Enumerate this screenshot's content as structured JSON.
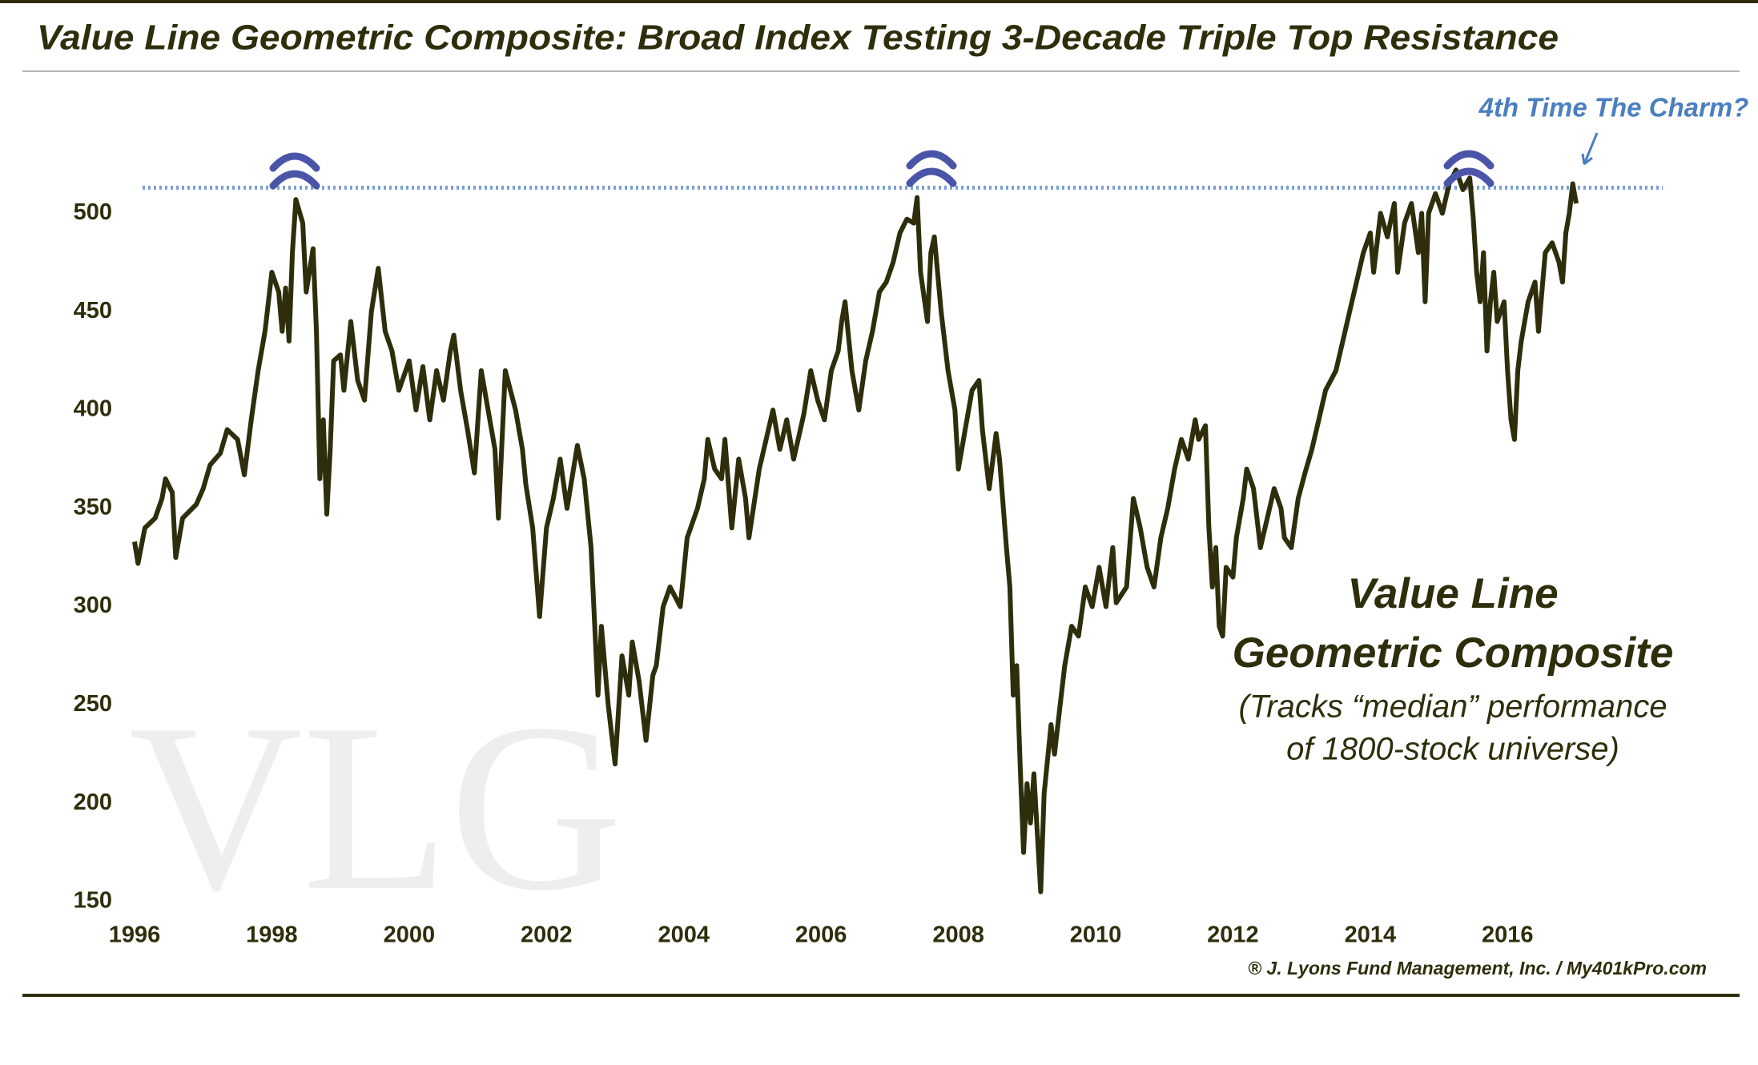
{
  "chart_data": {
    "type": "line",
    "title": "Value Line Geometric Composite: Broad Index Testing 3-Decade Triple Top Resistance",
    "annotation": "4th Time The Charm?",
    "watermark": "VLG",
    "label_lines": [
      "Value Line",
      "Geometric Composite",
      "(Tracks “median” performance",
      "of 1800-stock universe)"
    ],
    "credit": "® J. Lyons Fund Management, Inc. / My401kPro.com",
    "color": "#2e2e0c",
    "resistance_level": 513,
    "resistance_color": "#7a9fd6",
    "xlim": [
      1996,
      2018.4
    ],
    "xticks": [
      1996,
      1998,
      2000,
      2002,
      2004,
      2006,
      2008,
      2010,
      2012,
      2014,
      2016
    ],
    "ylim": [
      150,
      560
    ],
    "yticks": [
      150,
      200,
      250,
      300,
      350,
      400,
      450,
      500
    ],
    "x": [
      1996.0,
      1996.05,
      1996.15,
      1996.3,
      1996.4,
      1996.45,
      1996.55,
      1996.6,
      1996.7,
      1996.9,
      1997.0,
      1997.1,
      1997.25,
      1997.35,
      1997.5,
      1997.6,
      1997.7,
      1997.8,
      1997.9,
      1998.0,
      1998.1,
      1998.15,
      1998.2,
      1998.25,
      1998.3,
      1998.35,
      1998.45,
      1998.5,
      1998.6,
      1998.65,
      1998.7,
      1998.75,
      1998.8,
      1998.85,
      1998.9,
      1999.0,
      1999.05,
      1999.15,
      1999.25,
      1999.35,
      1999.45,
      1999.55,
      1999.65,
      1999.75,
      1999.85,
      2000.0,
      2000.1,
      2000.2,
      2000.3,
      2000.4,
      2000.5,
      2000.6,
      2000.65,
      2000.75,
      2000.85,
      2000.95,
      2001.05,
      2001.15,
      2001.25,
      2001.3,
      2001.4,
      2001.55,
      2001.65,
      2001.7,
      2001.8,
      2001.9,
      2002.0,
      2002.1,
      2002.2,
      2002.3,
      2002.45,
      2002.55,
      2002.65,
      2002.75,
      2002.8,
      2002.9,
      2003.0,
      2003.1,
      2003.2,
      2003.25,
      2003.35,
      2003.45,
      2003.55,
      2003.6,
      2003.7,
      2003.8,
      2003.95,
      2004.05,
      2004.2,
      2004.3,
      2004.35,
      2004.45,
      2004.55,
      2004.6,
      2004.7,
      2004.8,
      2004.9,
      2004.95,
      2005.1,
      2005.2,
      2005.3,
      2005.4,
      2005.5,
      2005.6,
      2005.75,
      2005.85,
      2005.95,
      2006.05,
      2006.15,
      2006.25,
      2006.3,
      2006.35,
      2006.45,
      2006.55,
      2006.65,
      2006.75,
      2006.85,
      2006.95,
      2007.05,
      2007.15,
      2007.25,
      2007.35,
      2007.4,
      2007.45,
      2007.55,
      2007.6,
      2007.65,
      2007.75,
      2007.85,
      2007.95,
      2008.0,
      2008.1,
      2008.2,
      2008.3,
      2008.35,
      2008.45,
      2008.55,
      2008.6,
      2008.7,
      2008.75,
      2008.8,
      2008.85,
      2008.9,
      2008.95,
      2009.0,
      2009.05,
      2009.1,
      2009.15,
      2009.2,
      2009.25,
      2009.35,
      2009.4,
      2009.5,
      2009.55,
      2009.65,
      2009.75,
      2009.85,
      2009.95,
      2010.05,
      2010.15,
      2010.25,
      2010.3,
      2010.45,
      2010.55,
      2010.65,
      2010.75,
      2010.85,
      2010.95,
      2011.05,
      2011.15,
      2011.25,
      2011.35,
      2011.45,
      2011.5,
      2011.6,
      2011.65,
      2011.7,
      2011.75,
      2011.8,
      2011.85,
      2011.9,
      2012.0,
      2012.05,
      2012.15,
      2012.2,
      2012.3,
      2012.4,
      2012.5,
      2012.6,
      2012.7,
      2012.75,
      2012.85,
      2012.95,
      2013.05,
      2013.15,
      2013.25,
      2013.35,
      2013.5,
      2013.6,
      2013.7,
      2013.8,
      2013.9,
      2014.0,
      2014.05,
      2014.15,
      2014.25,
      2014.35,
      2014.4,
      2014.5,
      2014.6,
      2014.7,
      2014.75,
      2014.8,
      2014.85,
      2014.95,
      2015.05,
      2015.15,
      2015.25,
      2015.35,
      2015.45,
      2015.5,
      2015.55,
      2015.6,
      2015.65,
      2015.7,
      2015.75,
      2015.8,
      2015.85,
      2015.95,
      2016.0,
      2016.05,
      2016.1,
      2016.15,
      2016.2,
      2016.3,
      2016.4,
      2016.45,
      2016.55,
      2016.65,
      2016.75,
      2016.8,
      2016.85,
      2016.9,
      2016.95,
      2017.0
    ],
    "values": [
      333,
      322,
      340,
      345,
      355,
      365,
      358,
      325,
      345,
      352,
      360,
      372,
      378,
      390,
      385,
      367,
      395,
      420,
      440,
      470,
      460,
      440,
      462,
      435,
      480,
      507,
      495,
      460,
      482,
      440,
      365,
      395,
      347,
      380,
      425,
      428,
      410,
      445,
      415,
      405,
      450,
      472,
      440,
      430,
      410,
      425,
      400,
      422,
      395,
      420,
      405,
      430,
      438,
      410,
      390,
      368,
      420,
      400,
      380,
      345,
      420,
      400,
      380,
      362,
      340,
      295,
      340,
      355,
      375,
      350,
      382,
      365,
      330,
      255,
      290,
      250,
      220,
      275,
      255,
      282,
      262,
      232,
      265,
      270,
      300,
      310,
      300,
      335,
      350,
      365,
      385,
      370,
      365,
      385,
      340,
      375,
      355,
      335,
      370,
      385,
      400,
      380,
      395,
      375,
      398,
      420,
      405,
      395,
      420,
      430,
      445,
      455,
      420,
      400,
      425,
      440,
      460,
      465,
      475,
      490,
      497,
      495,
      508,
      470,
      445,
      480,
      488,
      450,
      420,
      400,
      370,
      390,
      410,
      415,
      390,
      360,
      388,
      375,
      330,
      310,
      255,
      270,
      220,
      175,
      210,
      190,
      215,
      185,
      155,
      205,
      240,
      225,
      255,
      270,
      290,
      285,
      310,
      300,
      320,
      300,
      330,
      302,
      310,
      355,
      340,
      320,
      310,
      335,
      350,
      370,
      385,
      375,
      395,
      385,
      392,
      340,
      310,
      330,
      290,
      285,
      320,
      315,
      335,
      355,
      370,
      360,
      330,
      345,
      360,
      350,
      335,
      330,
      355,
      368,
      380,
      395,
      410,
      420,
      435,
      450,
      465,
      480,
      490,
      470,
      500,
      488,
      505,
      470,
      495,
      505,
      480,
      500,
      455,
      500,
      510,
      500,
      515,
      522,
      512,
      518,
      498,
      470,
      455,
      480,
      430,
      455,
      470,
      445,
      455,
      420,
      395,
      385,
      420,
      435,
      455,
      465,
      440,
      480,
      485,
      475,
      465,
      490,
      500,
      515,
      505
    ]
  }
}
